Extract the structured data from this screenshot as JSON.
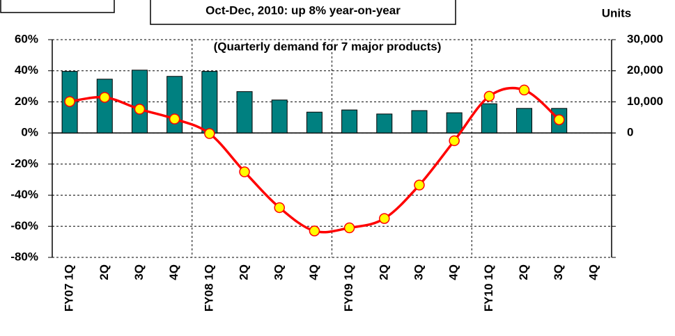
{
  "chart_data": {
    "type": "bar-line",
    "title": "Oct-Dec, 2010: up 8% year-on-year",
    "subtitle": "(Quarterly demand for 7 major products)",
    "y2label": "Units",
    "categories": [
      "FY07 1Q",
      "2Q",
      "3Q",
      "4Q",
      "FY08 1Q",
      "2Q",
      "3Q",
      "4Q",
      "FY09 1Q",
      "2Q",
      "3Q",
      "4Q",
      "FY10 1Q",
      "2Q",
      "3Q",
      "4Q"
    ],
    "series": [
      {
        "name": "Units",
        "type": "bar",
        "axis": "y2",
        "color": "#008080",
        "values": [
          19800,
          17300,
          20200,
          18200,
          19800,
          13300,
          10600,
          6700,
          7400,
          6100,
          7200,
          6500,
          9400,
          7900,
          7900,
          null
        ]
      },
      {
        "name": "Year-on-year",
        "type": "line",
        "color": "#ff0000",
        "marker_color": "#ffff00",
        "values": [
          20.2,
          22.9,
          15.3,
          9,
          -0.4,
          -25,
          -48,
          -63,
          -61,
          -55,
          -33.5,
          -5,
          23.6,
          27.6,
          8.5,
          null
        ]
      }
    ],
    "ylim": [
      -80,
      60
    ],
    "yticks": [
      {
        "value": -80,
        "label": "-80%"
      },
      {
        "value": -60,
        "label": "-60%"
      },
      {
        "value": -40,
        "label": "-40%"
      },
      {
        "value": -20,
        "label": "-20%"
      },
      {
        "value": 0,
        "label": "0%"
      },
      {
        "value": 20,
        "label": "20%"
      },
      {
        "value": 40,
        "label": "40%"
      },
      {
        "value": 60,
        "label": "60%"
      }
    ],
    "y2lim": [
      -40000,
      30000
    ],
    "y2ticks": [
      0,
      {
        "value": 10000,
        "label": "10,000"
      },
      {
        "value": 20000,
        "label": "20,000"
      },
      {
        "value": 30000,
        "label": "30,000"
      }
    ],
    "grid": true
  }
}
